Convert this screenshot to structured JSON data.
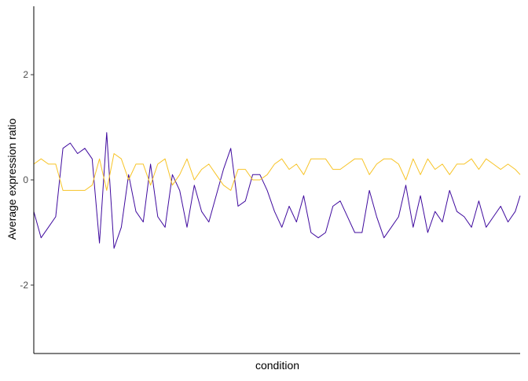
{
  "chart_data": {
    "type": "line",
    "title": "",
    "xlabel": "condition",
    "ylabel": "Average expression ratio",
    "ylim": [
      -3.3,
      3.3
    ],
    "yticks": [
      -2,
      0,
      2
    ],
    "xlim": [
      0,
      1
    ],
    "grid": false,
    "legend": "none",
    "series": [
      {
        "color": "#3f0a9e",
        "x": [
          0.0,
          0.015,
          0.03,
          0.045,
          0.06,
          0.075,
          0.09,
          0.105,
          0.12,
          0.135,
          0.15,
          0.165,
          0.18,
          0.195,
          0.21,
          0.225,
          0.24,
          0.255,
          0.27,
          0.285,
          0.3,
          0.315,
          0.33,
          0.345,
          0.36,
          0.375,
          0.39,
          0.405,
          0.42,
          0.435,
          0.45,
          0.465,
          0.48,
          0.495,
          0.51,
          0.525,
          0.54,
          0.555,
          0.57,
          0.585,
          0.6,
          0.615,
          0.63,
          0.645,
          0.66,
          0.675,
          0.69,
          0.705,
          0.72,
          0.735,
          0.75,
          0.765,
          0.78,
          0.795,
          0.81,
          0.825,
          0.84,
          0.855,
          0.87,
          0.885,
          0.9,
          0.915,
          0.93,
          0.945,
          0.96,
          0.975,
          0.99,
          1.0
        ],
        "y": [
          -0.6,
          -1.1,
          -0.9,
          -0.7,
          0.6,
          0.7,
          0.5,
          0.6,
          0.4,
          -1.2,
          0.9,
          -1.3,
          -0.9,
          0.1,
          -0.6,
          -0.8,
          0.3,
          -0.7,
          -0.9,
          0.1,
          -0.2,
          -0.9,
          -0.1,
          -0.6,
          -0.8,
          -0.3,
          0.2,
          0.6,
          -0.5,
          -0.4,
          0.1,
          0.1,
          -0.2,
          -0.6,
          -0.9,
          -0.5,
          -0.8,
          -0.3,
          -1.0,
          -1.1,
          -1.0,
          -0.5,
          -0.4,
          -0.7,
          -1.0,
          -1.0,
          -0.2,
          -0.7,
          -1.1,
          -0.9,
          -0.7,
          -0.1,
          -0.9,
          -0.3,
          -1.0,
          -0.6,
          -0.8,
          -0.2,
          -0.6,
          -0.7,
          -0.9,
          -0.4,
          -0.9,
          -0.7,
          -0.5,
          -0.8,
          -0.6,
          -0.3
        ]
      },
      {
        "color": "#f7c325",
        "x": [
          0.0,
          0.015,
          0.03,
          0.045,
          0.06,
          0.075,
          0.09,
          0.105,
          0.12,
          0.135,
          0.15,
          0.165,
          0.18,
          0.195,
          0.21,
          0.225,
          0.24,
          0.255,
          0.27,
          0.285,
          0.3,
          0.315,
          0.33,
          0.345,
          0.36,
          0.375,
          0.39,
          0.405,
          0.42,
          0.435,
          0.45,
          0.465,
          0.48,
          0.495,
          0.51,
          0.525,
          0.54,
          0.555,
          0.57,
          0.585,
          0.6,
          0.615,
          0.63,
          0.645,
          0.66,
          0.675,
          0.69,
          0.705,
          0.72,
          0.735,
          0.75,
          0.765,
          0.78,
          0.795,
          0.81,
          0.825,
          0.84,
          0.855,
          0.87,
          0.885,
          0.9,
          0.915,
          0.93,
          0.945,
          0.96,
          0.975,
          0.99,
          1.0
        ],
        "y": [
          0.3,
          0.4,
          0.3,
          0.3,
          -0.2,
          -0.2,
          -0.2,
          -0.2,
          -0.1,
          0.4,
          -0.2,
          0.5,
          0.4,
          0.0,
          0.3,
          0.3,
          -0.1,
          0.3,
          0.4,
          -0.1,
          0.1,
          0.4,
          0.0,
          0.2,
          0.3,
          0.1,
          -0.1,
          -0.2,
          0.2,
          0.2,
          0.0,
          0.0,
          0.1,
          0.3,
          0.4,
          0.2,
          0.3,
          0.1,
          0.4,
          0.4,
          0.4,
          0.2,
          0.2,
          0.3,
          0.4,
          0.4,
          0.1,
          0.3,
          0.4,
          0.4,
          0.3,
          0.0,
          0.4,
          0.1,
          0.4,
          0.2,
          0.3,
          0.1,
          0.3,
          0.3,
          0.4,
          0.2,
          0.4,
          0.3,
          0.2,
          0.3,
          0.2,
          0.1
        ]
      }
    ]
  }
}
